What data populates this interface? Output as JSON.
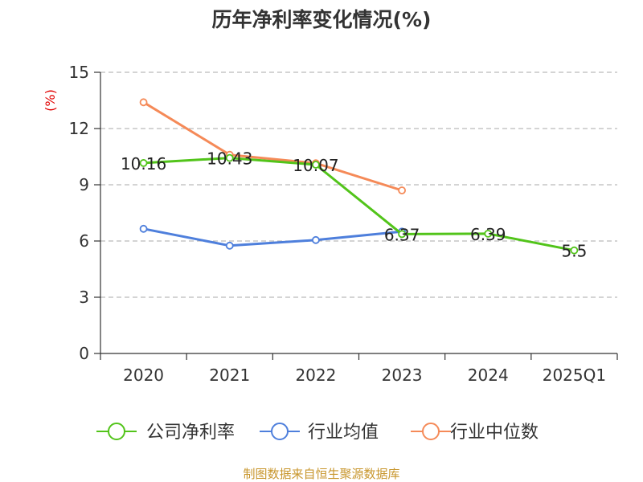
{
  "chart_data": {
    "type": "line",
    "title": "历年净利率变化情况(%)",
    "ylabel": "(%)",
    "xlabel": "",
    "categories": [
      "2020",
      "2021",
      "2022",
      "2023",
      "2024",
      "2025Q1"
    ],
    "ylim": [
      0,
      15
    ],
    "yticks": [
      0,
      3,
      6,
      9,
      12,
      15
    ],
    "grid": true,
    "legend_position": "bottom",
    "series": [
      {
        "name": "公司净利率",
        "color": "#52c41a",
        "values": [
          10.16,
          10.43,
          10.07,
          6.37,
          6.39,
          5.5
        ],
        "labels": [
          "10.16",
          "10.43",
          "10.07",
          "6.37",
          "6.39",
          "5.5"
        ]
      },
      {
        "name": "行业均值",
        "color": "#4e7fdc",
        "values": [
          6.65,
          5.75,
          6.05,
          6.5,
          null,
          null
        ]
      },
      {
        "name": "行业中位数",
        "color": "#f58a58",
        "values": [
          13.4,
          10.6,
          10.15,
          8.7,
          null,
          null
        ]
      }
    ]
  },
  "source": "制图数据来自恒生聚源数据库"
}
